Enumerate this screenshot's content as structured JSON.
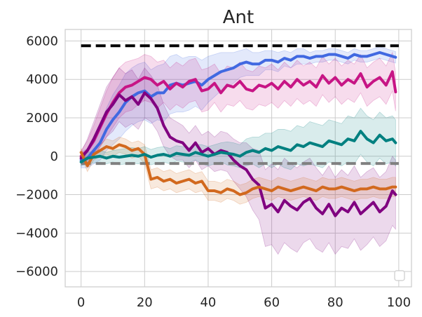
{
  "chart_data": {
    "type": "line",
    "title": "Ant",
    "xlabel": "",
    "ylabel": "",
    "xlim": [
      -5,
      104
    ],
    "ylim": [
      -6800,
      6600
    ],
    "grid": true,
    "legend": "lower-right (empty)",
    "x_ticks": [
      0,
      20,
      40,
      60,
      80,
      100
    ],
    "y_ticks": [
      -6000,
      -4000,
      -2000,
      0,
      2000,
      4000,
      6000
    ],
    "x_tick_labels": [
      "0",
      "20",
      "40",
      "60",
      "80",
      "100"
    ],
    "y_tick_labels": [
      "−6000",
      "−4000",
      "−2000",
      "0",
      "2000",
      "4000",
      "6000"
    ],
    "reference_lines": [
      {
        "name": "upper-baseline",
        "y": 5750,
        "x_range": [
          0,
          100
        ],
        "color": "#000000",
        "style": "dashed"
      },
      {
        "name": "lower-baseline",
        "y": -380,
        "x_range": [
          0,
          100
        ],
        "color": "#808080",
        "style": "dashed"
      }
    ],
    "series": [
      {
        "name": "blue",
        "color": "#4169e1",
        "x": [
          0,
          2,
          4,
          6,
          8,
          10,
          12,
          14,
          16,
          18,
          20,
          22,
          24,
          26,
          28,
          30,
          32,
          34,
          36,
          38,
          40,
          42,
          44,
          46,
          48,
          50,
          52,
          54,
          56,
          58,
          60,
          62,
          64,
          66,
          68,
          70,
          72,
          74,
          76,
          78,
          80,
          82,
          84,
          86,
          88,
          90,
          92,
          94,
          96,
          98,
          99
        ],
        "y": [
          -200,
          -100,
          300,
          700,
          1400,
          1900,
          2300,
          2800,
          3100,
          3300,
          3400,
          3100,
          3300,
          3300,
          3700,
          3800,
          3700,
          3800,
          3900,
          3700,
          4000,
          4200,
          4400,
          4500,
          4600,
          4800,
          4900,
          4800,
          4800,
          5000,
          5000,
          4900,
          5100,
          5000,
          5200,
          5200,
          5100,
          5200,
          5200,
          5300,
          5300,
          5200,
          5100,
          5300,
          5200,
          5200,
          5300,
          5400,
          5300,
          5200,
          5150
        ],
        "band": [
          400,
          500,
          700,
          900,
          1100,
          1300,
          1400,
          1500,
          1500,
          1500,
          1500,
          1400,
          1400,
          1500,
          1500,
          1500,
          1400,
          1400,
          1300,
          1300,
          1200,
          1100,
          1000,
          900,
          800,
          700,
          700,
          600,
          600,
          500,
          500,
          500,
          400,
          400,
          400,
          400,
          300,
          300,
          300,
          300,
          300,
          300,
          300,
          300,
          300,
          300,
          300,
          300,
          300,
          300,
          300
        ]
      },
      {
        "name": "magenta",
        "color": "#c71585",
        "x": [
          0,
          2,
          4,
          6,
          8,
          10,
          12,
          14,
          16,
          18,
          20,
          22,
          24,
          26,
          28,
          30,
          32,
          34,
          36,
          38,
          40,
          42,
          44,
          46,
          48,
          50,
          52,
          54,
          56,
          58,
          60,
          62,
          64,
          66,
          68,
          70,
          72,
          74,
          76,
          78,
          80,
          82,
          84,
          86,
          88,
          90,
          92,
          94,
          96,
          98,
          99
        ],
        "y": [
          0,
          300,
          800,
          1500,
          2200,
          2800,
          3300,
          3600,
          3700,
          3900,
          4100,
          4000,
          3700,
          3900,
          3500,
          3800,
          3600,
          3900,
          4000,
          3400,
          3500,
          3800,
          3300,
          3700,
          3600,
          3900,
          3500,
          3400,
          3700,
          3600,
          3800,
          3500,
          3900,
          3600,
          4000,
          3700,
          3900,
          3600,
          4200,
          3800,
          4100,
          3700,
          4000,
          3800,
          4300,
          3600,
          3900,
          4100,
          3700,
          4400,
          3350
        ],
        "band": [
          300,
          500,
          800,
          1000,
          1200,
          1300,
          1300,
          1300,
          1300,
          1200,
          1200,
          1200,
          1200,
          1100,
          1100,
          1100,
          1100,
          1100,
          1100,
          1100,
          1100,
          1000,
          1000,
          1000,
          1000,
          1000,
          1000,
          1000,
          1000,
          1000,
          1000,
          1000,
          1000,
          1000,
          1000,
          1000,
          1000,
          1000,
          1000,
          1000,
          1000,
          1000,
          1000,
          1000,
          1000,
          1000,
          1000,
          1000,
          1000,
          1000,
          1000
        ]
      },
      {
        "name": "purple",
        "color": "#800080",
        "x": [
          0,
          2,
          4,
          6,
          8,
          10,
          12,
          14,
          16,
          18,
          20,
          22,
          24,
          26,
          28,
          30,
          32,
          34,
          36,
          38,
          40,
          42,
          44,
          46,
          48,
          50,
          52,
          54,
          56,
          58,
          60,
          62,
          64,
          66,
          68,
          70,
          72,
          74,
          76,
          78,
          80,
          82,
          84,
          86,
          88,
          90,
          92,
          94,
          96,
          98,
          99
        ],
        "y": [
          -100,
          300,
          900,
          1600,
          2300,
          2700,
          3200,
          2900,
          3100,
          2700,
          3300,
          3000,
          2500,
          1600,
          1000,
          800,
          700,
          300,
          700,
          200,
          400,
          100,
          300,
          200,
          -200,
          -500,
          -700,
          -1200,
          -1500,
          -2700,
          -2500,
          -2900,
          -2300,
          -2600,
          -2800,
          -2400,
          -2200,
          -2700,
          -3000,
          -2500,
          -3100,
          -2700,
          -2900,
          -2400,
          -3000,
          -2700,
          -2400,
          -2900,
          -2600,
          -1800,
          -2000
        ],
        "band": [
          300,
          600,
          900,
          1100,
          1300,
          1400,
          1400,
          1400,
          1400,
          1300,
          1300,
          1200,
          1200,
          1100,
          1000,
          1000,
          900,
          900,
          900,
          900,
          900,
          900,
          1000,
          1000,
          1100,
          1200,
          1400,
          1600,
          1800,
          2000,
          2100,
          2200,
          2200,
          2200,
          2200,
          2100,
          2100,
          2100,
          2000,
          2000,
          2000,
          2000,
          1900,
          1900,
          1900,
          1900,
          1800,
          1800,
          1800,
          1800,
          1800
        ]
      },
      {
        "name": "orange",
        "color": "#d2691e",
        "x": [
          0,
          2,
          4,
          6,
          8,
          10,
          12,
          14,
          16,
          18,
          20,
          22,
          24,
          26,
          28,
          30,
          32,
          34,
          36,
          38,
          40,
          42,
          44,
          46,
          48,
          50,
          52,
          54,
          56,
          58,
          60,
          62,
          64,
          66,
          68,
          70,
          72,
          74,
          76,
          78,
          80,
          82,
          84,
          86,
          88,
          90,
          92,
          94,
          96,
          98,
          99
        ],
        "y": [
          200,
          -500,
          100,
          300,
          500,
          400,
          600,
          500,
          300,
          400,
          100,
          -1200,
          -1100,
          -1300,
          -1200,
          -1400,
          -1300,
          -1200,
          -1400,
          -1300,
          -1800,
          -1800,
          -1900,
          -1700,
          -1800,
          -2000,
          -1900,
          -1700,
          -1600,
          -1700,
          -1800,
          -1600,
          -1700,
          -1800,
          -1700,
          -1600,
          -1700,
          -1800,
          -1600,
          -1700,
          -1700,
          -1600,
          -1700,
          -1800,
          -1700,
          -1700,
          -1600,
          -1700,
          -1700,
          -1600,
          -1600
        ],
        "band": [
          200,
          300,
          300,
          300,
          400,
          400,
          400,
          400,
          400,
          400,
          500,
          500,
          500,
          500,
          500,
          500,
          500,
          500,
          500,
          500,
          500,
          500,
          500,
          500,
          500,
          500,
          500,
          500,
          500,
          500,
          500,
          500,
          500,
          500,
          500,
          500,
          500,
          500,
          500,
          500,
          500,
          500,
          500,
          500,
          500,
          500,
          500,
          500,
          500,
          500,
          500
        ]
      },
      {
        "name": "teal",
        "color": "#008080",
        "x": [
          0,
          2,
          4,
          6,
          8,
          10,
          12,
          14,
          16,
          18,
          20,
          22,
          24,
          26,
          28,
          30,
          32,
          34,
          36,
          38,
          40,
          42,
          44,
          46,
          48,
          50,
          52,
          54,
          56,
          58,
          60,
          62,
          64,
          66,
          68,
          70,
          72,
          74,
          76,
          78,
          80,
          82,
          84,
          86,
          88,
          90,
          92,
          94,
          96,
          98,
          99
        ],
        "y": [
          -300,
          -100,
          -50,
          0,
          -100,
          0,
          -50,
          0,
          50,
          0,
          100,
          -50,
          50,
          100,
          0,
          150,
          100,
          50,
          200,
          100,
          0,
          100,
          200,
          150,
          100,
          0,
          200,
          300,
          200,
          400,
          300,
          500,
          400,
          300,
          600,
          500,
          700,
          600,
          500,
          800,
          700,
          600,
          900,
          800,
          1300,
          900,
          700,
          1100,
          800,
          900,
          700
        ],
        "band": [
          200,
          300,
          300,
          300,
          300,
          300,
          400,
          400,
          400,
          400,
          400,
          400,
          400,
          400,
          400,
          400,
          400,
          400,
          400,
          500,
          500,
          500,
          500,
          600,
          600,
          600,
          700,
          700,
          800,
          800,
          900,
          900,
          1000,
          1000,
          1000,
          1000,
          1100,
          1100,
          1100,
          1100,
          1100,
          1100,
          1200,
          1200,
          1200,
          1200,
          1200,
          1200,
          1200,
          1200,
          1200
        ]
      }
    ]
  }
}
